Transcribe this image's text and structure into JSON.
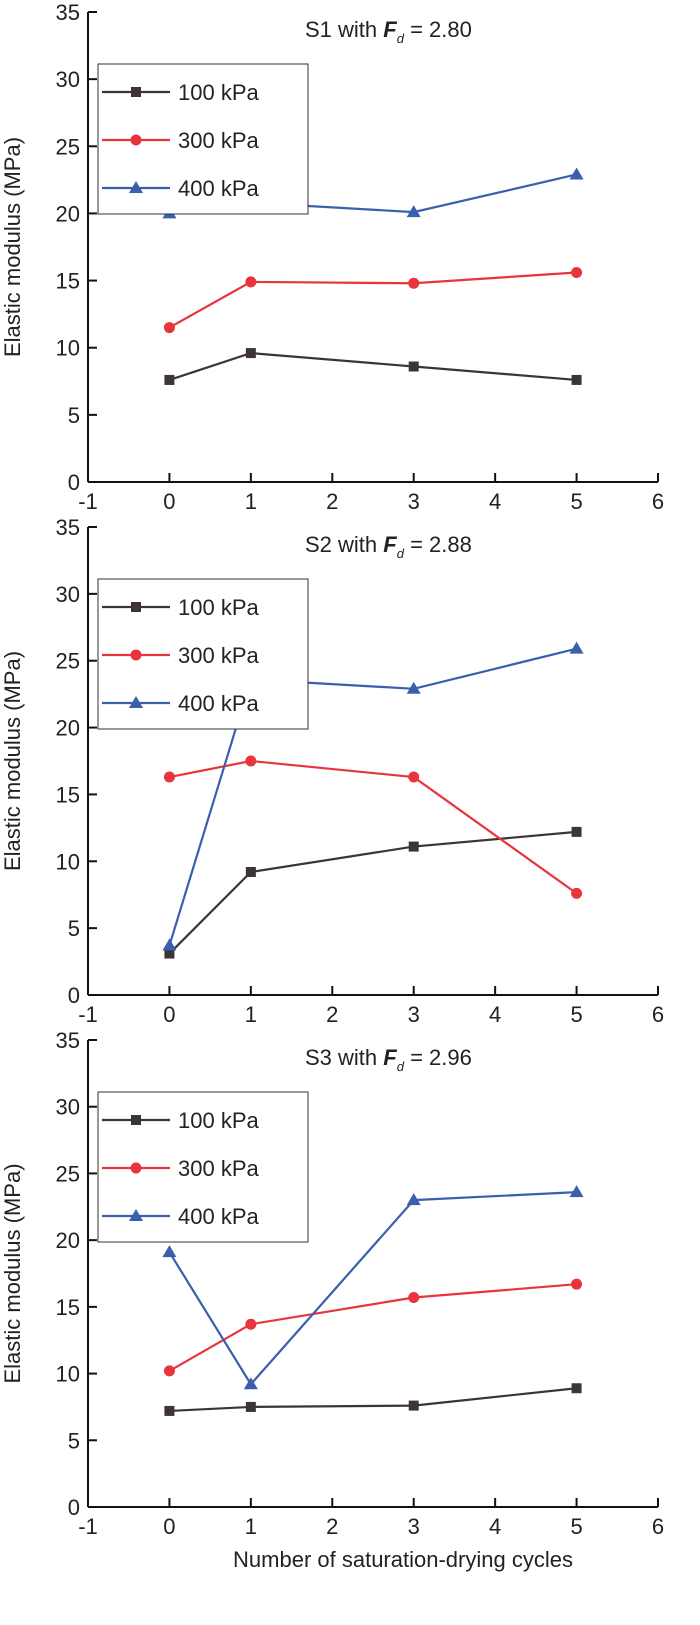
{
  "chart_data": [
    {
      "type": "line",
      "title_prefix": "S1 with ",
      "title_symbol": "F",
      "title_subscript": "d",
      "title_value": " =  2.80",
      "xlabel": "",
      "ylabel": "Elastic modulus (MPa)",
      "xlim": [
        -1,
        6
      ],
      "ylim": [
        0,
        35
      ],
      "xticks": [
        "-1",
        "0",
        "1",
        "2",
        "3",
        "4",
        "5",
        "6"
      ],
      "yticks": [
        "0",
        "5",
        "10",
        "15",
        "20",
        "25",
        "30",
        "35"
      ],
      "x": [
        0,
        1,
        3,
        5
      ],
      "legend": "top-left",
      "series": [
        {
          "name": "100 kPa",
          "color": "#3d3535",
          "marker": "square",
          "values": [
            7.6,
            9.6,
            8.6,
            7.6
          ]
        },
        {
          "name": "300 kPa",
          "color": "#e8353d",
          "marker": "circle",
          "values": [
            11.5,
            14.9,
            14.8,
            15.6
          ]
        },
        {
          "name": "400 kPa",
          "color": "#3a5fad",
          "marker": "triangle",
          "values": [
            20.0,
            20.8,
            20.1,
            22.9
          ]
        }
      ]
    },
    {
      "type": "line",
      "title_prefix": "S2 with ",
      "title_symbol": "F",
      "title_subscript": "d",
      "title_value": " =  2.88",
      "xlabel": "",
      "ylabel": "Elastic modulus (MPa)",
      "xlim": [
        -1,
        6
      ],
      "ylim": [
        0,
        35
      ],
      "xticks": [
        "-1",
        "0",
        "1",
        "2",
        "3",
        "4",
        "5",
        "6"
      ],
      "yticks": [
        "0",
        "5",
        "10",
        "15",
        "20",
        "25",
        "30",
        "35"
      ],
      "x": [
        0,
        1,
        3,
        5
      ],
      "legend": "top-left",
      "series": [
        {
          "name": "100 kPa",
          "color": "#3d3535",
          "marker": "square",
          "values": [
            3.1,
            9.2,
            11.1,
            12.2
          ]
        },
        {
          "name": "300 kPa",
          "color": "#e8353d",
          "marker": "circle",
          "values": [
            16.3,
            17.5,
            16.3,
            7.6
          ]
        },
        {
          "name": "400 kPa",
          "color": "#3a5fad",
          "marker": "triangle",
          "values": [
            3.7,
            23.6,
            22.9,
            25.9
          ]
        }
      ]
    },
    {
      "type": "line",
      "title_prefix": "S3 with ",
      "title_symbol": "F",
      "title_subscript": "d",
      "title_value": " =  2.96",
      "xlabel": "Number of saturation-drying cycles",
      "ylabel": "Elastic modulus (MPa)",
      "xlim": [
        -1,
        6
      ],
      "ylim": [
        0,
        35
      ],
      "xticks": [
        "-1",
        "0",
        "1",
        "2",
        "3",
        "4",
        "5",
        "6"
      ],
      "yticks": [
        "0",
        "5",
        "10",
        "15",
        "20",
        "25",
        "30",
        "35"
      ],
      "x": [
        0,
        1,
        3,
        5
      ],
      "legend": "top-left",
      "series": [
        {
          "name": "100 kPa",
          "color": "#3d3535",
          "marker": "square",
          "values": [
            7.2,
            7.5,
            7.6,
            8.9
          ]
        },
        {
          "name": "300 kPa",
          "color": "#e8353d",
          "marker": "circle",
          "values": [
            10.2,
            13.7,
            15.7,
            16.7
          ]
        },
        {
          "name": "400 kPa",
          "color": "#3a5fad",
          "marker": "triangle",
          "values": [
            19.1,
            9.2,
            23.0,
            23.6
          ]
        }
      ]
    }
  ]
}
